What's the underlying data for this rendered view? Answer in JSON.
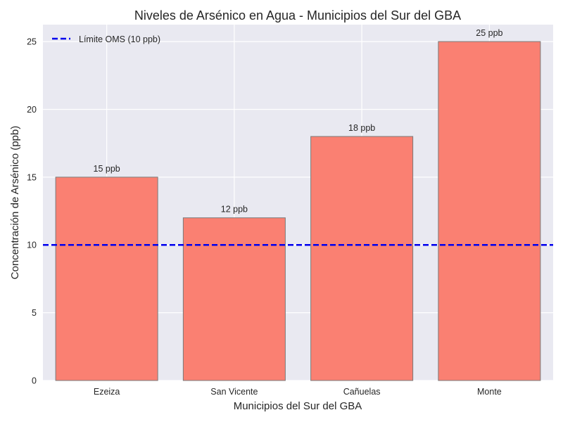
{
  "chart_data": {
    "type": "bar",
    "title": "Niveles de Arsénico en Agua - Municipios del Sur del GBA",
    "xlabel": "Municipios del Sur del GBA",
    "ylabel": "Concentración de Arsénico (ppb)",
    "categories": [
      "Ezeiza",
      "San Vicente",
      "Cañuelas",
      "Monte"
    ],
    "values": [
      15,
      12,
      18,
      25
    ],
    "data_labels": [
      "15 ppb",
      "12 ppb",
      "18 ppb",
      "25 ppb"
    ],
    "ylim": [
      0,
      26.25
    ],
    "yticks": [
      0,
      5,
      10,
      15,
      20,
      25
    ],
    "grid": true,
    "reference_line": {
      "label": "Límite OMS (10 ppb)",
      "value": 10,
      "style": "dashed"
    },
    "legend_position": "upper left",
    "colors": {
      "bar_fill": "#fa8072",
      "bar_edge": "#7a7a7a",
      "reference_line": "#0000ee",
      "plot_background": "#e9e9f1",
      "grid": "#ffffff"
    }
  }
}
